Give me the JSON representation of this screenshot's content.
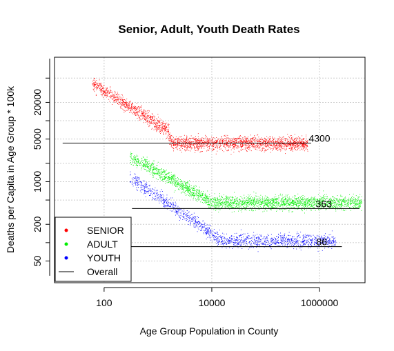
{
  "chart_data": {
    "type": "scatter",
    "title": "Senior, Adult, Youth Death Rates",
    "xlabel": "Age Group Population in County",
    "ylabel": "Deaths per Capita in Age Group * 100k",
    "x_scale": "log",
    "y_scale": "log",
    "xlim": [
      12,
      7000000
    ],
    "ylim": [
      22,
      110000
    ],
    "x_ticks": [
      100,
      10000,
      1000000
    ],
    "x_tick_labels": [
      "100",
      "10000",
      "1000000"
    ],
    "y_ticks": [
      50,
      200,
      1000,
      5000,
      20000
    ],
    "y_tick_labels": [
      "50",
      "200",
      "1000",
      "5000",
      "20000"
    ],
    "grid": true,
    "series": [
      {
        "name": "SENIOR",
        "color": "#ff0000",
        "x_range": [
          60,
          600000
        ],
        "y_range": [
          2800,
          60000
        ],
        "overall_rate": 4300,
        "overall_x_range": [
          17,
          700000
        ],
        "label": "4300"
      },
      {
        "name": "ADULT",
        "color": "#00ee00",
        "x_range": [
          300,
          6000000
        ],
        "y_range": [
          130,
          2000
        ],
        "overall_rate": 363,
        "overall_x_range": [
          330,
          5500000
        ],
        "label": "363"
      },
      {
        "name": "YOUTH",
        "color": "#0000ff",
        "x_range": [
          300,
          2000000
        ],
        "y_range": [
          28,
          1200
        ],
        "overall_rate": 86,
        "overall_x_range": [
          300,
          2600000
        ],
        "label": "86"
      }
    ],
    "legend": {
      "position": "bottom-left",
      "entries": [
        "SENIOR",
        "ADULT",
        "YOUTH",
        "Overall"
      ]
    }
  }
}
